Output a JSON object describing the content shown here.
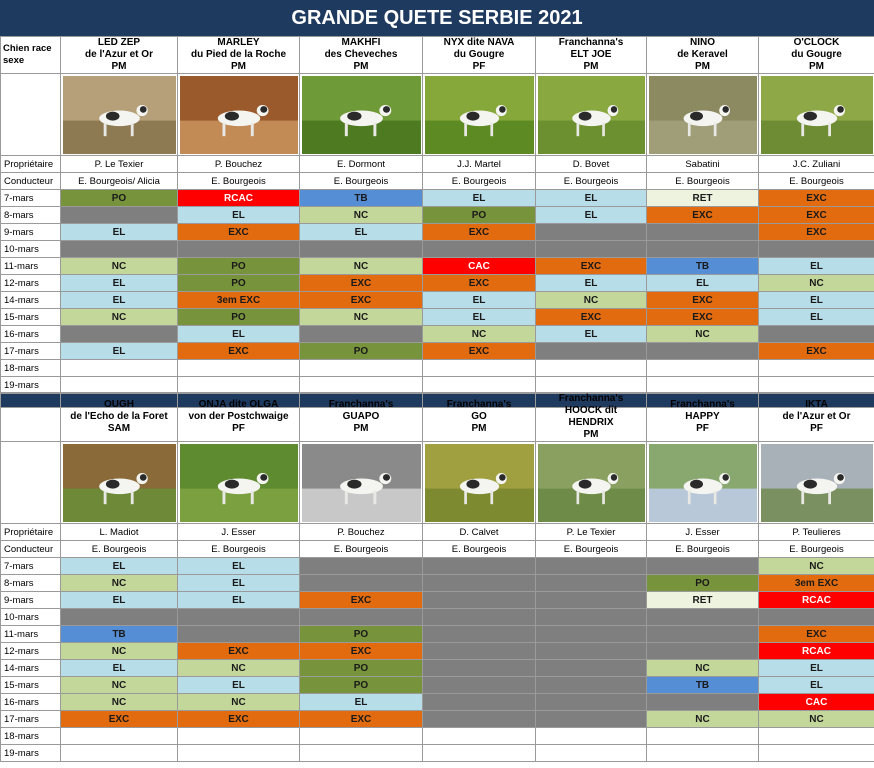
{
  "title": "GRANDE QUETE SERBIE 2021",
  "labels": {
    "header": "Chien race sexe",
    "owner": "Propriétaire",
    "handler": "Conducteur"
  },
  "dates": [
    "7-mars",
    "8-mars",
    "9-mars",
    "10-mars",
    "11-mars",
    "12-mars",
    "14-mars",
    "15-mars",
    "16-mars",
    "17-mars",
    "18-mars",
    "19-mars"
  ],
  "colors": {
    "EXC": "#e26b10",
    "EL": "#b7dde8",
    "NC": "#c4d79b",
    "PO": "#77933c",
    "TB": "#558ed5",
    "RCAC": "#ff0000",
    "CAC": "#ff0000",
    "RET": "#eef3e0",
    "3em EXC": "#e26b10",
    "gray": "#7f7f7f",
    "header": "#1f3a5f"
  },
  "sections": [
    {
      "dogs": [
        {
          "name": [
            "LED ZEP",
            "de l'Azur et Or",
            "PM"
          ],
          "owner": "P. Le Texier",
          "handler": "E. Bourgeois/ Alicia",
          "photo": "dog in dry field",
          "results": [
            "PO",
            "#gray",
            "EL",
            "#gray",
            "NC",
            "EL",
            "EL",
            "NC",
            "#gray",
            "EL",
            "",
            ""
          ]
        },
        {
          "name": [
            "MARLEY",
            "du Pied de la Roche",
            "PM"
          ],
          "owner": "P. Bouchez",
          "handler": "E. Bourgeois",
          "photo": "dog running on plowed field",
          "results": [
            "RCAC",
            "EL",
            "EXC",
            "#gray",
            "PO",
            "PO",
            "3em EXC",
            "PO",
            "EL",
            "EXC",
            "",
            ""
          ]
        },
        {
          "name": [
            "MAKHFI",
            "des Cheveches",
            "PM"
          ],
          "owner": "E. Dormont",
          "handler": "E. Bourgeois",
          "photo": "dog running on grass",
          "results": [
            "TB",
            "NC",
            "EL",
            "#gray",
            "NC",
            "EXC",
            "EXC",
            "NC",
            "#gray",
            "PO",
            "",
            ""
          ]
        },
        {
          "name": [
            "NYX dite NAVA",
            "du Gougre",
            "PF"
          ],
          "owner": "J.J. Martel",
          "handler": "E. Bourgeois",
          "photo": "dog in green crop",
          "results": [
            "EL",
            "PO",
            "EXC",
            "#gray",
            "CAC",
            "EXC",
            "EL",
            "EL",
            "NC",
            "EXC",
            "",
            ""
          ]
        },
        {
          "name": [
            "Franchanna's",
            "ELT JOE",
            "PM"
          ],
          "owner": "D. Bovet",
          "handler": "E. Bourgeois",
          "photo": "dog pointing in green field",
          "results": [
            "EL",
            "EL",
            "#gray",
            "#gray",
            "EXC",
            "EL",
            "NC",
            "EXC",
            "EL",
            "#gray",
            "",
            ""
          ]
        },
        {
          "name": [
            "NINO",
            "de Keravel",
            "PM"
          ],
          "owner": "Sabatini",
          "handler": "E. Bourgeois",
          "photo": "dog in distance",
          "results": [
            "RET",
            "EXC",
            "#gray",
            "#gray",
            "TB",
            "EL",
            "EXC",
            "EXC",
            "NC",
            "#gray",
            "",
            ""
          ]
        },
        {
          "name": [
            "O'CLOCK",
            "du Gougre",
            "PM"
          ],
          "owner": "J.C. Zuliani",
          "handler": "E. Bourgeois",
          "photo": "dog standing in crop",
          "results": [
            "EXC",
            "EXC",
            "EXC",
            "#gray",
            "EL",
            "NC",
            "EL",
            "EL",
            "#gray",
            "EXC",
            "",
            ""
          ]
        }
      ]
    },
    {
      "dogs": [
        {
          "name": [
            "OUGH",
            "de l'Echo de la Foret",
            "SAM"
          ],
          "owner": "L. Madiot",
          "handler": "E. Bourgeois",
          "photo": "dog lying in grass",
          "results": [
            "EL",
            "NC",
            "EL",
            "#gray",
            "TB",
            "NC",
            "EL",
            "NC",
            "NC",
            "EXC",
            "",
            ""
          ]
        },
        {
          "name": [
            "ONJA dite OLGA",
            "von der Postchwaige",
            "PF"
          ],
          "owner": "J. Esser",
          "handler": "E. Bourgeois",
          "photo": "white dog in grass",
          "results": [
            "EL",
            "EL",
            "EL",
            "#gray",
            "#gray",
            "EXC",
            "NC",
            "EL",
            "NC",
            "EXC",
            "",
            ""
          ]
        },
        {
          "name": [
            "Franchanna's",
            "GUAPO",
            "PM"
          ],
          "owner": "P. Bouchez",
          "handler": "E. Bourgeois",
          "photo": "dog black and white photo",
          "results": [
            "#gray",
            "#gray",
            "EXC",
            "#gray",
            "PO",
            "EXC",
            "PO",
            "PO",
            "EL",
            "EXC",
            "",
            ""
          ]
        },
        {
          "name": [
            "Franchanna's",
            "GO",
            "PM"
          ],
          "owner": "D. Calvet",
          "handler": "E. Bourgeois",
          "photo": "dog in green crop",
          "results": [
            "#gray",
            "#gray",
            "#gray",
            "#gray",
            "#gray",
            "#gray",
            "#gray",
            "#gray",
            "#gray",
            "#gray",
            "",
            ""
          ]
        },
        {
          "name": [
            "Franchanna's",
            "HOOCK dit",
            "HENDRIX",
            "PM"
          ],
          "owner": "P. Le Texier",
          "handler": "E. Bourgeois",
          "photo": "dog in meadow",
          "results": [
            "#gray",
            "#gray",
            "#gray",
            "#gray",
            "#gray",
            "#gray",
            "#gray",
            "#gray",
            "#gray",
            "#gray",
            "",
            ""
          ]
        },
        {
          "name": [
            "Franchanna's",
            "HAPPY",
            "PF"
          ],
          "owner": "J. Esser",
          "handler": "E. Bourgeois",
          "photo": "dog in field sky",
          "results": [
            "#gray",
            "PO",
            "RET",
            "#gray",
            "#gray",
            "#gray",
            "NC",
            "TB",
            "#gray",
            "NC",
            "",
            ""
          ]
        },
        {
          "name": [
            "IKTA",
            "de l'Azur et Or",
            "PF"
          ],
          "owner": "P. Teulieres",
          "handler": "E. Bourgeois",
          "photo": "dog standing field",
          "results": [
            "NC",
            "3em EXC",
            "RCAC",
            "#gray",
            "EXC",
            "RCAC",
            "EL",
            "EL",
            "CAC",
            "NC",
            "",
            ""
          ]
        }
      ]
    }
  ]
}
